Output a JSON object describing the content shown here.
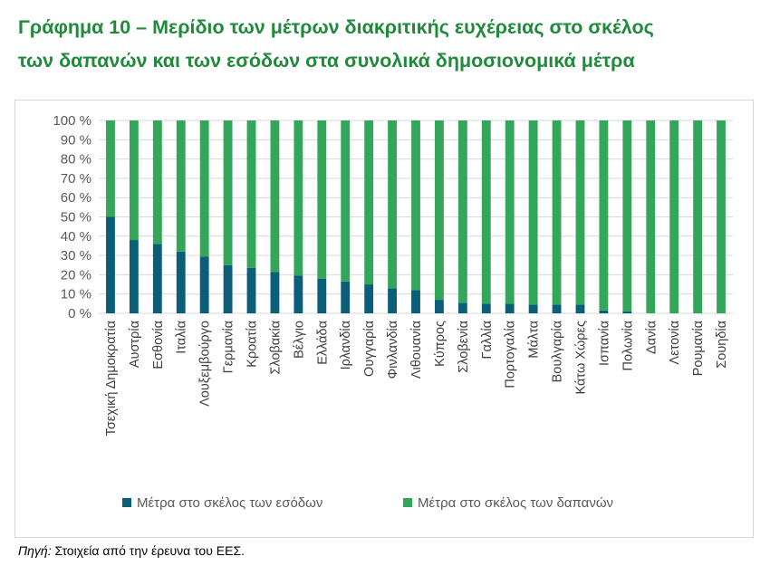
{
  "title": {
    "line1": "Γράφημα 10 – Μερίδιο των μέτρων διακριτικής ευχέρειας στο σκέλος",
    "line2": "των δαπανών και των εσόδων στα συνολικά δημοσιονομικά μέτρα"
  },
  "source": {
    "label": "Πηγή:",
    "text": " Στοιχεία από την έρευνα του ΕΕΣ."
  },
  "colors": {
    "revenue": "#0b5e78",
    "expenditure": "#33a65a",
    "grid": "#d9d9d9",
    "axis_text": "#595959"
  },
  "chart_data": {
    "type": "bar",
    "stacked": true,
    "percent": true,
    "categories": [
      "Τσεχική Δημοκρατία",
      "Αυστρία",
      "Εσθονία",
      "Ιταλία",
      "Λουξεμβούργο",
      "Γερμανία",
      "Κροατία",
      "Σλοβακία",
      "Βέλγιο",
      "Ελλάδα",
      "Ιρλανδία",
      "Ουγγαρία",
      "Φινλανδία",
      "Λιθουανία",
      "Κύπρος",
      "Σλοβενία",
      "Γαλλία",
      "Πορτογαλία",
      "Μάλτα",
      "Βουλγαρία",
      "Κάτω Χώρες",
      "Ισπανία",
      "Πολωνία",
      "Δανία",
      "Λετονία",
      "Ρουμανία",
      "Σουηδία"
    ],
    "series": [
      {
        "name": "Μέτρα στο σκέλος των εσόδων",
        "values": [
          50,
          38,
          36,
          32,
          29.5,
          25,
          23.5,
          21.5,
          19.5,
          18,
          16.5,
          15,
          13,
          12,
          7,
          5.5,
          5,
          5,
          4.5,
          4.5,
          4.5,
          1.5,
          1,
          0,
          0,
          0,
          0
        ]
      },
      {
        "name": "Μέτρα στο σκέλος των δαπανών",
        "values": [
          50,
          62,
          64,
          68,
          70.5,
          75,
          76.5,
          78.5,
          80.5,
          82,
          83.5,
          85,
          87,
          88,
          93,
          94.5,
          95,
          95,
          95.5,
          95.5,
          95.5,
          98.5,
          99,
          100,
          100,
          100,
          100
        ]
      }
    ],
    "yticks": [
      "0 %",
      "10 %",
      "20 %",
      "30 %",
      "40 %",
      "50 %",
      "60 %",
      "70 %",
      "80 %",
      "90 %",
      "100 %"
    ],
    "ylim": [
      0,
      100
    ],
    "grid": true,
    "legend_position": "bottom"
  }
}
